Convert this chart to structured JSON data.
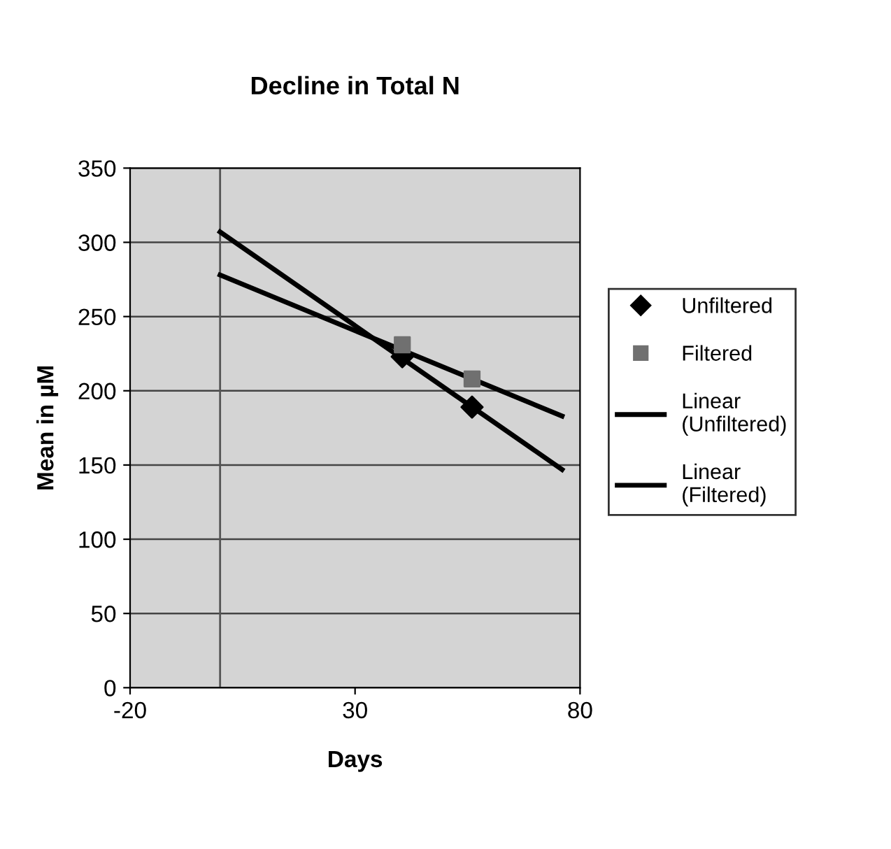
{
  "chart_data": {
    "type": "scatter",
    "title": "Decline in Total N",
    "xlabel": "Days",
    "ylabel": "Mean in µM",
    "xlim": [
      -20,
      80
    ],
    "xticks": [
      -20,
      30,
      80
    ],
    "ylim": [
      0,
      350
    ],
    "yticks": [
      0,
      50,
      100,
      150,
      200,
      250,
      300,
      350
    ],
    "grid": "y",
    "legend": "right",
    "series": [
      {
        "name": "Unfiltered",
        "marker": "diamond",
        "color": "#000000",
        "x": [
          40.5,
          56
        ],
        "values": [
          223,
          189
        ]
      },
      {
        "name": "Filtered",
        "marker": "square",
        "color": "#707070",
        "x": [
          40.5,
          56
        ],
        "values": [
          231,
          208
        ]
      },
      {
        "name": "Linear (Unfiltered)",
        "type": "line",
        "marker": "none",
        "color": "#000000",
        "x": [
          0,
          76
        ],
        "values": [
          307,
          147
        ]
      },
      {
        "name": "Linear (Filtered)",
        "type": "line",
        "marker": "none",
        "color": "#000000",
        "x": [
          0,
          76
        ],
        "values": [
          278,
          183
        ]
      }
    ]
  }
}
